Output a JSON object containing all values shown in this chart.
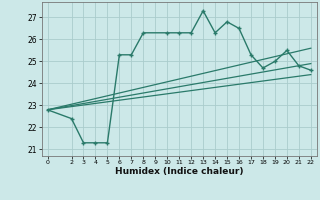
{
  "xlabel": "Humidex (Indice chaleur)",
  "background_color": "#cce8e8",
  "grid_color": "#aacccc",
  "line_color": "#2a7a6a",
  "xlim": [
    -0.5,
    22.5
  ],
  "ylim": [
    20.7,
    27.7
  ],
  "yticks": [
    21,
    22,
    23,
    24,
    25,
    26,
    27
  ],
  "xticks": [
    0,
    2,
    3,
    4,
    5,
    6,
    7,
    8,
    9,
    10,
    11,
    12,
    13,
    14,
    15,
    16,
    17,
    18,
    19,
    20,
    21,
    22
  ],
  "curve_x": [
    0,
    2,
    3,
    4,
    5,
    6,
    7,
    8,
    10,
    11,
    12,
    13,
    14,
    15,
    16,
    17,
    18,
    19,
    20,
    21,
    22
  ],
  "curve_y": [
    22.8,
    22.4,
    21.3,
    21.3,
    21.3,
    25.3,
    25.3,
    26.3,
    26.3,
    26.3,
    26.3,
    27.3,
    26.3,
    26.8,
    26.5,
    25.3,
    24.7,
    25.0,
    25.5,
    24.8,
    24.6
  ],
  "line1_x": [
    0,
    22
  ],
  "line1_y": [
    22.8,
    25.6
  ],
  "line2_x": [
    0,
    22
  ],
  "line2_y": [
    22.8,
    24.9
  ],
  "line3_x": [
    0,
    22
  ],
  "line3_y": [
    22.8,
    24.4
  ]
}
